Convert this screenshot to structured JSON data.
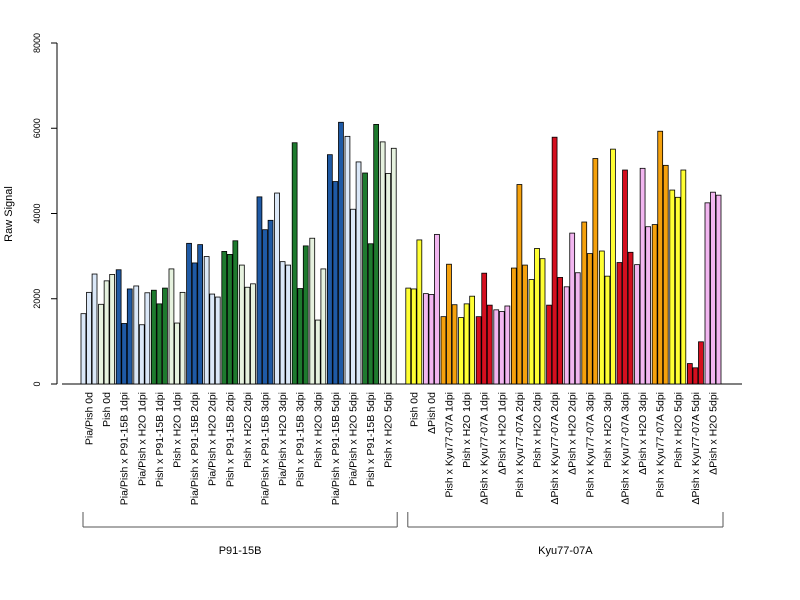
{
  "chart_data": {
    "type": "bar",
    "ylabel": "Raw Signal",
    "ylim": [
      0,
      8000
    ],
    "yticks": [
      0,
      2000,
      4000,
      6000,
      8000
    ],
    "legend": "none",
    "grid": false,
    "colors": {
      "lightblue": "#dbe8f8",
      "blue": "#1f5aa5",
      "green": "#1e7a2e",
      "lightgreen": "#e6f2df",
      "yellow": "#ffff33",
      "violet": "#f2b6f0",
      "orange": "#f5a10d",
      "red": "#d40f1f"
    },
    "groups": [
      {
        "label": "P91-15B",
        "categories": [
          {
            "label": "Pia/Pish 0d",
            "color": "lightblue",
            "values": [
              1650,
              2150,
              2580
            ]
          },
          {
            "label": "Pish 0d",
            "color": "lightgreen",
            "values": [
              1870,
              2420,
              2570
            ]
          },
          {
            "label": "Pia/Pish x P91-15B 1dpi",
            "color": "blue",
            "values": [
              2680,
              1420,
              2230
            ]
          },
          {
            "label": "Pia/Pish x H2O 1dpi",
            "color": "lightblue",
            "values": [
              2300,
              1390,
              2140
            ]
          },
          {
            "label": "Pish x P91-15B 1dpi",
            "color": "green",
            "values": [
              2200,
              1880,
              2250
            ]
          },
          {
            "label": "Pish x H2O 1dpi",
            "color": "lightgreen",
            "values": [
              2700,
              1430,
              2150
            ]
          },
          {
            "label": "Pia/Pish x P91-15B 2dpi",
            "color": "blue",
            "values": [
              3300,
              2840,
              3270
            ]
          },
          {
            "label": "Pia/Pish x H2O 2dpi",
            "color": "lightblue",
            "values": [
              2990,
              2110,
              2040
            ]
          },
          {
            "label": "Pish x P91-15B 2dpi",
            "color": "green",
            "values": [
              3110,
              3040,
              3360
            ]
          },
          {
            "label": "Pish x H2O 2dpi",
            "color": "lightgreen",
            "values": [
              2790,
              2270,
              2350
            ]
          },
          {
            "label": "Pia/Pish x P91-15B 3dpi",
            "color": "blue",
            "values": [
              4390,
              3620,
              3840
            ]
          },
          {
            "label": "Pia/Pish x H2O 3dpi",
            "color": "lightblue",
            "values": [
              4480,
              2870,
              2790
            ]
          },
          {
            "label": "Pish x P91-15B 3dpi",
            "color": "green",
            "values": [
              5660,
              2240,
              3240
            ]
          },
          {
            "label": "Pish x H2O 3dpi",
            "color": "lightgreen",
            "values": [
              3420,
              1500,
              2700
            ]
          },
          {
            "label": "Pia/Pish x P91-15B 5dpi",
            "color": "blue",
            "values": [
              5380,
              4750,
              6140
            ]
          },
          {
            "label": "Pia/Pish x H2O 5dpi",
            "color": "lightblue",
            "values": [
              5810,
              4100,
              5210
            ]
          },
          {
            "label": "Pish x P91-15B 5dpi",
            "color": "green",
            "values": [
              4950,
              3290,
              6090
            ]
          },
          {
            "label": "Pish x H2O 5dpi",
            "color": "lightgreen",
            "values": [
              5680,
              4940,
              5530
            ]
          }
        ]
      },
      {
        "label": "Kyu77-07A",
        "categories": [
          {
            "label": "Pish 0d",
            "color": "yellow",
            "values": [
              2250,
              2230,
              3380
            ]
          },
          {
            "label": "ΔPish 0d",
            "color": "violet",
            "values": [
              2120,
              2100,
              3510
            ]
          },
          {
            "label": "Pish x Kyu77-07A 1dpi",
            "color": "orange",
            "values": [
              1580,
              2810,
              1860
            ]
          },
          {
            "label": "Pish x H2O 1dpi",
            "color": "yellow",
            "values": [
              1560,
              1880,
              2060
            ]
          },
          {
            "label": "ΔPish x Kyu77-07A 1dpi",
            "color": "red",
            "values": [
              1580,
              2600,
              1850
            ]
          },
          {
            "label": "ΔPish x H2O 1dpi",
            "color": "violet",
            "values": [
              1740,
              1700,
              1830
            ]
          },
          {
            "label": "Pish x Kyu77-07A 2dpi",
            "color": "orange",
            "values": [
              2720,
              4680,
              2790
            ]
          },
          {
            "label": "Pish x H2O 2dpi",
            "color": "yellow",
            "values": [
              2450,
              3180,
              2940
            ]
          },
          {
            "label": "ΔPish x Kyu77-07A 2dpi",
            "color": "red",
            "values": [
              1850,
              5790,
              2500
            ]
          },
          {
            "label": "ΔPish x H2O 2dpi",
            "color": "violet",
            "values": [
              2280,
              3540,
              2610
            ]
          },
          {
            "label": "Pish x Kyu77-07A 3dpi",
            "color": "orange",
            "values": [
              3800,
              3060,
              5290
            ]
          },
          {
            "label": "Pish x H2O 3dpi",
            "color": "yellow",
            "values": [
              3120,
              2530,
              5510
            ]
          },
          {
            "label": "ΔPish x Kyu77-07A 3dpi",
            "color": "red",
            "values": [
              2850,
              5020,
              3090
            ]
          },
          {
            "label": "ΔPish x H2O 3dpi",
            "color": "violet",
            "values": [
              2800,
              5060,
              3690
            ]
          },
          {
            "label": "Pish x Kyu77-07A 5dpi",
            "color": "orange",
            "values": [
              3740,
              5930,
              5130
            ]
          },
          {
            "label": "Pish x H2O 5dpi",
            "color": "yellow",
            "values": [
              4550,
              4380,
              5020
            ]
          },
          {
            "label": "ΔPish x Kyu77-07A 5dpi",
            "color": "red",
            "values": [
              480,
              380,
              990
            ]
          },
          {
            "label": "ΔPish x H2O 5dpi",
            "color": "violet",
            "values": [
              4250,
              4500,
              4430
            ]
          }
        ]
      }
    ]
  }
}
